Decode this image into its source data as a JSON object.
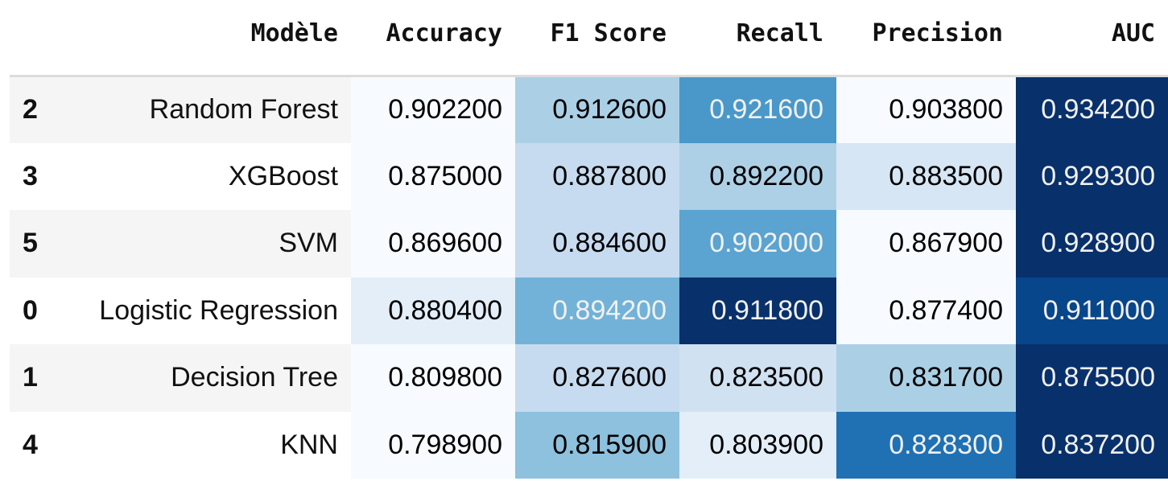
{
  "columns": [
    "Modèle",
    "Accuracy",
    "F1 Score",
    "Recall",
    "Precision",
    "AUC"
  ],
  "rows": [
    {
      "index": "2",
      "model": "Random Forest",
      "values": [
        "0.902200",
        "0.912600",
        "0.921600",
        "0.903800",
        "0.934200"
      ],
      "bg": [
        "#f7fbff",
        "#abd0e6",
        "#4a98c9",
        "#f7fbff",
        "#08306b"
      ],
      "fg": [
        "#000000",
        "#000000",
        "#f1f1f1",
        "#000000",
        "#f1f1f1"
      ]
    },
    {
      "index": "3",
      "model": "XGBoost",
      "values": [
        "0.875000",
        "0.887800",
        "0.892200",
        "0.883500",
        "0.929300"
      ],
      "bg": [
        "#f7fbff",
        "#c6dbef",
        "#add0e6",
        "#d6e6f4",
        "#08306b"
      ],
      "fg": [
        "#000000",
        "#000000",
        "#000000",
        "#000000",
        "#f1f1f1"
      ]
    },
    {
      "index": "5",
      "model": "SVM",
      "values": [
        "0.869600",
        "0.884600",
        "0.902000",
        "0.867900",
        "0.928900"
      ],
      "bg": [
        "#f7fbff",
        "#c6dbef",
        "#5ba3d0",
        "#f7fbff",
        "#08306b"
      ],
      "fg": [
        "#000000",
        "#000000",
        "#f1f1f1",
        "#000000",
        "#f1f1f1"
      ]
    },
    {
      "index": "0",
      "model": "Logistic Regression",
      "values": [
        "0.880400",
        "0.894200",
        "0.911800",
        "0.877400",
        "0.911000"
      ],
      "bg": [
        "#e3eef9",
        "#72b2d8",
        "#08306b",
        "#f7fbff",
        "#08468b"
      ],
      "fg": [
        "#000000",
        "#f1f1f1",
        "#f1f1f1",
        "#000000",
        "#f1f1f1"
      ]
    },
    {
      "index": "1",
      "model": "Decision Tree",
      "values": [
        "0.809800",
        "0.827600",
        "0.823500",
        "0.831700",
        "0.875500"
      ],
      "bg": [
        "#f7fbff",
        "#c6dbef",
        "#d0e1f2",
        "#abd0e6",
        "#08306b"
      ],
      "fg": [
        "#000000",
        "#000000",
        "#000000",
        "#000000",
        "#f1f1f1"
      ]
    },
    {
      "index": "4",
      "model": "KNN",
      "values": [
        "0.798900",
        "0.815900",
        "0.803900",
        "0.828300",
        "0.837200"
      ],
      "bg": [
        "#f7fbff",
        "#8dc1dd",
        "#e3eef9",
        "#2070b4",
        "#08306b"
      ],
      "fg": [
        "#000000",
        "#000000",
        "#000000",
        "#f1f1f1",
        "#f1f1f1"
      ]
    }
  ]
}
